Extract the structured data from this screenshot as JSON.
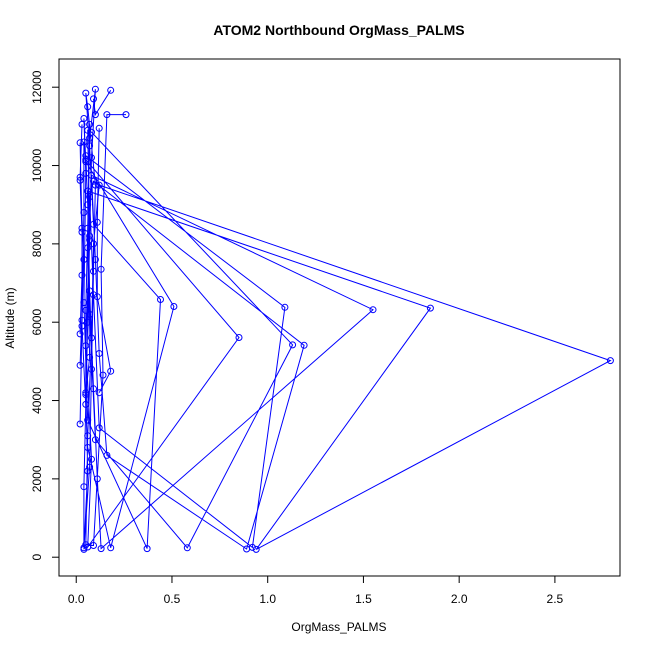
{
  "chart_data": {
    "type": "line",
    "title": "ATOM2 Northbound OrgMass_PALMS",
    "xlabel": "OrgMass_PALMS",
    "ylabel": "Altitude (m)",
    "xlim": [
      -0.09,
      2.84
    ],
    "ylim": [
      -480,
      12720
    ],
    "x_ticks": [
      "0.0",
      "0.5",
      "1.0",
      "1.5",
      "2.0",
      "2.5"
    ],
    "y_ticks": [
      "0",
      "2000",
      "4000",
      "6000",
      "8000",
      "10000",
      "12000"
    ],
    "grid": false,
    "legend": "none",
    "marker": "open-circle",
    "series": [
      {
        "color": "#0000ff",
        "points": [
          {
            "x": 0.04,
            "y": 200
          },
          {
            "x": 0.06,
            "y": 2200
          },
          {
            "x": 0.05,
            "y": 4200
          },
          {
            "x": 0.05,
            "y": 6300
          },
          {
            "x": 0.06,
            "y": 8400
          },
          {
            "x": 0.07,
            "y": 10700
          },
          {
            "x": 0.1,
            "y": 11950
          },
          {
            "x": 0.08,
            "y": 10200
          },
          {
            "x": 0.07,
            "y": 8100
          },
          {
            "x": 0.06,
            "y": 6000
          },
          {
            "x": 0.05,
            "y": 3900
          },
          {
            "x": 0.04,
            "y": 1800
          },
          {
            "x": 0.04,
            "y": 240
          },
          {
            "x": 0.07,
            "y": 2300
          },
          {
            "x": 0.08,
            "y": 4800
          },
          {
            "x": 0.09,
            "y": 7300
          },
          {
            "x": 0.1,
            "y": 9500
          },
          {
            "x": 0.06,
            "y": 11500
          },
          {
            "x": 0.05,
            "y": 11850
          },
          {
            "x": 0.07,
            "y": 10500
          },
          {
            "x": 0.09,
            "y": 8500
          },
          {
            "x": 0.44,
            "y": 6580
          },
          {
            "x": 0.37,
            "y": 220
          },
          {
            "x": 0.06,
            "y": 3500
          },
          {
            "x": 0.04,
            "y": 6500
          },
          {
            "x": 0.05,
            "y": 9800
          },
          {
            "x": 0.04,
            "y": 11200
          },
          {
            "x": 0.05,
            "y": 10100
          },
          {
            "x": 0.51,
            "y": 6400
          },
          {
            "x": 0.18,
            "y": 240
          },
          {
            "x": 0.06,
            "y": 2800
          },
          {
            "x": 0.03,
            "y": 5900
          },
          {
            "x": 0.04,
            "y": 8800
          },
          {
            "x": 0.04,
            "y": 10600
          },
          {
            "x": 0.05,
            "y": 10150
          },
          {
            "x": 0.85,
            "y": 5610
          },
          {
            "x": 0.06,
            "y": 260
          },
          {
            "x": 0.08,
            "y": 2500
          },
          {
            "x": 0.05,
            "y": 5400
          },
          {
            "x": 0.07,
            "y": 8200
          },
          {
            "x": 0.06,
            "y": 10900
          },
          {
            "x": 0.08,
            "y": 10850
          },
          {
            "x": 1.13,
            "y": 5420
          },
          {
            "x": 0.58,
            "y": 240
          },
          {
            "x": 0.1,
            "y": 3000
          },
          {
            "x": 0.07,
            "y": 6200
          },
          {
            "x": 0.06,
            "y": 9000
          },
          {
            "x": 0.05,
            "y": 10250
          },
          {
            "x": 1.09,
            "y": 6380
          },
          {
            "x": 0.92,
            "y": 250
          },
          {
            "x": 0.12,
            "y": 3300
          },
          {
            "x": 0.09,
            "y": 6700
          },
          {
            "x": 0.07,
            "y": 9200
          },
          {
            "x": 0.09,
            "y": 9600
          },
          {
            "x": 1.19,
            "y": 5410
          },
          {
            "x": 0.89,
            "y": 210
          },
          {
            "x": 0.16,
            "y": 2600
          },
          {
            "x": 0.12,
            "y": 5200
          },
          {
            "x": 0.1,
            "y": 7600
          },
          {
            "x": 0.08,
            "y": 9750
          },
          {
            "x": 1.55,
            "y": 6320
          },
          {
            "x": 0.13,
            "y": 220
          },
          {
            "x": 0.11,
            "y": 2000
          },
          {
            "x": 0.09,
            "y": 4300
          },
          {
            "x": 0.07,
            "y": 6800
          },
          {
            "x": 0.06,
            "y": 9350
          },
          {
            "x": 1.85,
            "y": 6360
          },
          {
            "x": 0.94,
            "y": 200
          },
          {
            "x": 2.79,
            "y": 5020
          },
          {
            "x": 0.12,
            "y": 9500
          },
          {
            "x": 0.09,
            "y": 8000
          },
          {
            "x": 0.08,
            "y": 5600
          },
          {
            "x": 0.06,
            "y": 3100
          },
          {
            "x": 0.05,
            "y": 320
          },
          {
            "x": 0.09,
            "y": 300
          },
          {
            "x": 0.14,
            "y": 4650
          },
          {
            "x": 0.13,
            "y": 7350
          },
          {
            "x": 0.16,
            "y": 11300
          },
          {
            "x": 0.26,
            "y": 11300
          }
        ]
      },
      {
        "color": "#0000ff",
        "points": [
          {
            "x": 0.02,
            "y": 4900
          },
          {
            "x": 0.04,
            "y": 7600
          },
          {
            "x": 0.02,
            "y": 9700
          },
          {
            "x": 0.03,
            "y": 11050
          }
        ]
      },
      {
        "color": "#0000ff",
        "points": [
          {
            "x": 0.02,
            "y": 9620
          },
          {
            "x": 0.03,
            "y": 8300
          },
          {
            "x": 0.03,
            "y": 6050
          },
          {
            "x": 0.02,
            "y": 3400
          }
        ]
      },
      {
        "color": "#0000ff",
        "points": [
          {
            "x": 0.05,
            "y": 4150
          },
          {
            "x": 0.07,
            "y": 5100
          },
          {
            "x": 0.06,
            "y": 7900
          },
          {
            "x": 0.07,
            "y": 11050
          }
        ]
      },
      {
        "color": "#0000ff",
        "points": [
          {
            "x": 0.12,
            "y": 4200
          },
          {
            "x": 0.18,
            "y": 4750
          },
          {
            "x": 0.11,
            "y": 6650
          },
          {
            "x": 0.11,
            "y": 8550
          },
          {
            "x": 0.12,
            "y": 10950
          }
        ]
      },
      {
        "color": "#0000ff",
        "points": [
          {
            "x": 0.09,
            "y": 11700
          },
          {
            "x": 0.1,
            "y": 11300
          },
          {
            "x": 0.18,
            "y": 11920
          }
        ]
      },
      {
        "color": "#0000ff",
        "points": [
          {
            "x": 0.02,
            "y": 10580
          },
          {
            "x": 0.03,
            "y": 8400
          },
          {
            "x": 0.03,
            "y": 7200
          },
          {
            "x": 0.02,
            "y": 5700
          }
        ]
      }
    ]
  }
}
